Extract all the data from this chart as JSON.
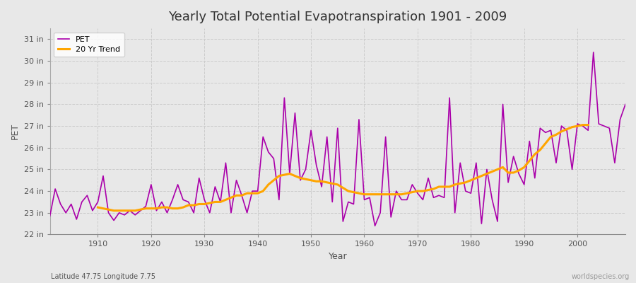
{
  "title": "Yearly Total Potential Evapotranspiration 1901 - 2009",
  "xlabel": "Year",
  "ylabel": "PET",
  "subtitle": "Latitude 47.75 Longitude 7.75",
  "watermark": "worldspecies.org",
  "pet_color": "#aa00aa",
  "trend_color": "#FFA500",
  "background_color": "#e8e8e8",
  "plot_bg_color": "#e8e8e8",
  "ylim": [
    22,
    31.5
  ],
  "yticks": [
    22,
    23,
    24,
    25,
    26,
    27,
    28,
    29,
    30,
    31
  ],
  "ytick_labels": [
    "22 in",
    "23 in",
    "24 in",
    "25 in",
    "26 in",
    "27 in",
    "28 in",
    "29 in",
    "30 in",
    "31 in"
  ],
  "years": [
    1901,
    1902,
    1903,
    1904,
    1905,
    1906,
    1907,
    1908,
    1909,
    1910,
    1911,
    1912,
    1913,
    1914,
    1915,
    1916,
    1917,
    1918,
    1919,
    1920,
    1921,
    1922,
    1923,
    1924,
    1925,
    1926,
    1927,
    1928,
    1929,
    1930,
    1931,
    1932,
    1933,
    1934,
    1935,
    1936,
    1937,
    1938,
    1939,
    1940,
    1941,
    1942,
    1943,
    1944,
    1945,
    1946,
    1947,
    1948,
    1949,
    1950,
    1951,
    1952,
    1953,
    1954,
    1955,
    1956,
    1957,
    1958,
    1959,
    1960,
    1961,
    1962,
    1963,
    1964,
    1965,
    1966,
    1967,
    1968,
    1969,
    1970,
    1971,
    1972,
    1973,
    1974,
    1975,
    1976,
    1977,
    1978,
    1979,
    1980,
    1981,
    1982,
    1983,
    1984,
    1985,
    1986,
    1987,
    1988,
    1989,
    1990,
    1991,
    1992,
    1993,
    1994,
    1995,
    1996,
    1997,
    1998,
    1999,
    2000,
    2001,
    2002,
    2003,
    2004,
    2005,
    2006,
    2007,
    2008,
    2009
  ],
  "pet_values": [
    22.85,
    24.1,
    23.4,
    23.0,
    23.4,
    22.7,
    23.5,
    23.8,
    23.1,
    23.5,
    24.7,
    23.0,
    22.65,
    23.0,
    22.9,
    23.1,
    22.9,
    23.1,
    23.3,
    24.3,
    23.1,
    23.5,
    23.0,
    23.6,
    24.3,
    23.6,
    23.5,
    23.0,
    24.6,
    23.6,
    23.0,
    24.2,
    23.5,
    25.3,
    23.0,
    24.5,
    23.8,
    23.0,
    24.0,
    24.0,
    26.5,
    25.8,
    25.5,
    23.6,
    28.3,
    24.8,
    27.6,
    24.5,
    25.0,
    26.8,
    25.2,
    24.2,
    26.5,
    23.5,
    26.9,
    22.6,
    23.5,
    23.4,
    27.3,
    23.6,
    23.7,
    22.4,
    23.0,
    26.5,
    22.8,
    24.0,
    23.6,
    23.6,
    24.3,
    23.9,
    23.6,
    24.6,
    23.7,
    23.8,
    23.7,
    28.3,
    23.0,
    25.3,
    24.0,
    23.9,
    25.3,
    22.5,
    25.0,
    23.6,
    22.6,
    28.0,
    24.4,
    25.6,
    24.8,
    24.3,
    26.3,
    24.6,
    26.9,
    26.7,
    26.8,
    25.3,
    27.0,
    26.8,
    25.0,
    27.1,
    27.0,
    26.8,
    30.4,
    27.1,
    27.0,
    26.9,
    25.3,
    27.3,
    28.0
  ],
  "trend_values": [
    null,
    null,
    null,
    null,
    null,
    null,
    null,
    null,
    null,
    23.25,
    23.2,
    23.15,
    23.1,
    23.1,
    23.1,
    23.1,
    23.1,
    23.15,
    23.2,
    23.2,
    23.2,
    23.25,
    23.25,
    23.2,
    23.2,
    23.25,
    23.35,
    23.35,
    23.4,
    23.4,
    23.45,
    23.5,
    23.5,
    23.6,
    23.7,
    23.8,
    23.8,
    23.9,
    23.9,
    23.9,
    24.0,
    24.3,
    24.5,
    24.7,
    24.75,
    24.8,
    24.7,
    24.6,
    24.55,
    24.5,
    24.45,
    24.45,
    24.4,
    24.35,
    24.3,
    24.15,
    24.0,
    23.95,
    23.9,
    23.85,
    23.85,
    23.85,
    23.85,
    23.85,
    23.85,
    23.85,
    23.85,
    23.9,
    23.95,
    24.0,
    24.0,
    24.05,
    24.1,
    24.2,
    24.2,
    24.2,
    24.3,
    24.35,
    24.4,
    24.5,
    24.6,
    24.7,
    24.8,
    24.9,
    25.0,
    25.1,
    24.85,
    24.85,
    24.95,
    25.1,
    25.4,
    25.7,
    25.9,
    26.2,
    26.5,
    26.6,
    26.75,
    26.85,
    26.95,
    27.0,
    27.05,
    27.05,
    null,
    null,
    null,
    null,
    null,
    null,
    null
  ]
}
